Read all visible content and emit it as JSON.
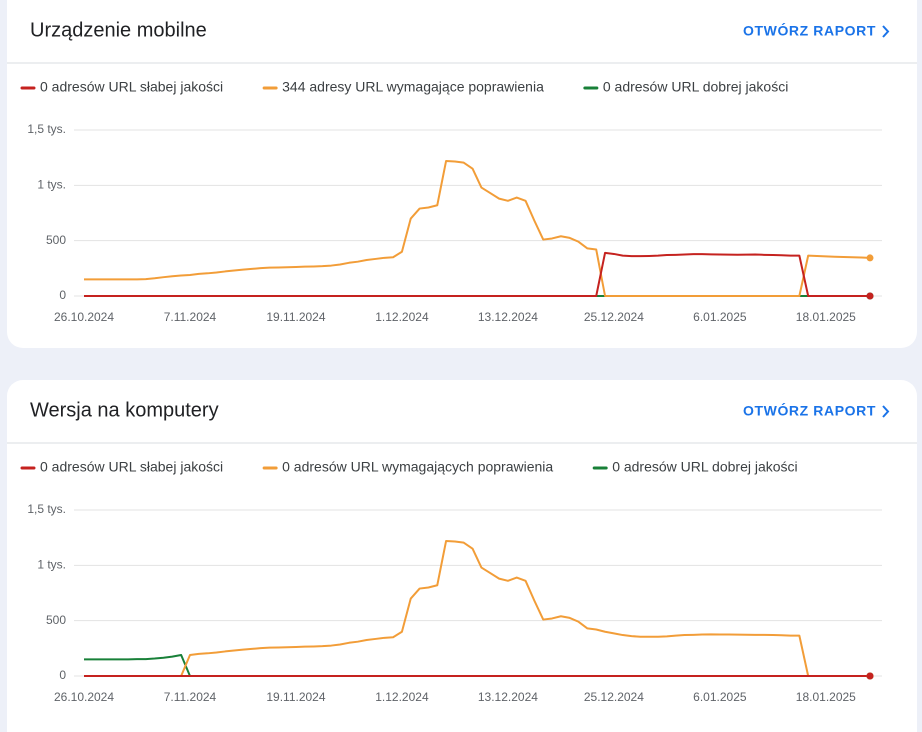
{
  "chart_data": [
    {
      "type": "line",
      "title": "Urządzenie mobilne",
      "action": "OTWÓRZ RAPORT",
      "x": [
        "26.10.2024",
        "27.10.2024",
        "28.10.2024",
        "29.10.2024",
        "30.10.2024",
        "31.10.2024",
        "1.11.2024",
        "2.11.2024",
        "3.11.2024",
        "4.11.2024",
        "5.11.2024",
        "6.11.2024",
        "7.11.2024",
        "8.11.2024",
        "9.11.2024",
        "10.11.2024",
        "11.11.2024",
        "12.11.2024",
        "13.11.2024",
        "14.11.2024",
        "15.11.2024",
        "16.11.2024",
        "17.11.2024",
        "18.11.2024",
        "19.11.2024",
        "20.11.2024",
        "21.11.2024",
        "22.11.2024",
        "23.11.2024",
        "24.11.2024",
        "25.11.2024",
        "26.11.2024",
        "27.11.2024",
        "28.11.2024",
        "29.11.2024",
        "30.11.2024",
        "1.12.2024",
        "2.12.2024",
        "3.12.2024",
        "4.12.2024",
        "5.12.2024",
        "6.12.2024",
        "7.12.2024",
        "8.12.2024",
        "9.12.2024",
        "10.12.2024",
        "11.12.2024",
        "12.12.2024",
        "13.12.2024",
        "14.12.2024",
        "15.12.2024",
        "16.12.2024",
        "17.12.2024",
        "18.12.2024",
        "19.12.2024",
        "20.12.2024",
        "21.12.2024",
        "22.12.2024",
        "23.12.2024",
        "24.12.2024",
        "25.12.2024",
        "26.12.2024",
        "27.12.2024",
        "28.12.2024",
        "29.12.2024",
        "30.12.2024",
        "31.12.2024",
        "1.01.2025",
        "2.01.2025",
        "3.01.2025",
        "4.01.2025",
        "5.01.2025",
        "6.01.2025",
        "7.01.2025",
        "8.01.2025",
        "9.01.2025",
        "10.01.2025",
        "11.01.2025",
        "12.01.2025",
        "13.01.2025",
        "14.01.2025",
        "15.01.2025",
        "16.01.2025",
        "17.01.2025",
        "18.01.2025",
        "19.01.2025",
        "20.01.2025",
        "21.01.2025",
        "22.01.2025",
        "23.01.2025"
      ],
      "ylim": [
        0,
        1500
      ],
      "yticks": [
        0,
        500,
        {
          "value": 1000,
          "label": "1 tys."
        },
        {
          "value": 1500,
          "label": "1,5 tys."
        }
      ],
      "grid": true,
      "series": [
        {
          "name": "0 adresów URL słabej jakości",
          "color": "#c5221f",
          "values": [
            0,
            0,
            0,
            0,
            0,
            0,
            0,
            0,
            0,
            0,
            0,
            0,
            0,
            0,
            0,
            0,
            0,
            0,
            0,
            0,
            0,
            0,
            0,
            0,
            0,
            0,
            0,
            0,
            0,
            0,
            0,
            0,
            0,
            0,
            0,
            0,
            0,
            0,
            0,
            0,
            0,
            0,
            0,
            0,
            0,
            0,
            0,
            0,
            0,
            0,
            0,
            0,
            0,
            0,
            0,
            0,
            0,
            0,
            0,
            390,
            380,
            365,
            360,
            360,
            362,
            365,
            370,
            372,
            375,
            378,
            378,
            376,
            375,
            374,
            373,
            374,
            375,
            372,
            370,
            368,
            365,
            365,
            0,
            0,
            0,
            0,
            0,
            0,
            0,
            0
          ]
        },
        {
          "name": "344 adresy URL wymagające poprawienia",
          "color": "#f29d38",
          "values": [
            150,
            150,
            150,
            150,
            150,
            150,
            150,
            152,
            160,
            170,
            178,
            185,
            190,
            200,
            205,
            212,
            222,
            230,
            238,
            245,
            252,
            256,
            258,
            260,
            262,
            265,
            267,
            270,
            275,
            285,
            300,
            310,
            325,
            335,
            345,
            350,
            400,
            700,
            790,
            800,
            820,
            1220,
            1215,
            1205,
            1150,
            980,
            930,
            880,
            860,
            890,
            860,
            680,
            510,
            520,
            540,
            525,
            490,
            430,
            420,
            0,
            0,
            0,
            0,
            0,
            0,
            0,
            0,
            0,
            0,
            0,
            0,
            0,
            0,
            0,
            0,
            0,
            0,
            0,
            0,
            0,
            0,
            0,
            365,
            362,
            358,
            355,
            352,
            350,
            348,
            344
          ]
        },
        {
          "name": "0 adresów URL dobrej jakości",
          "color": "#188038",
          "values": [
            0,
            0,
            0,
            0,
            0,
            0,
            0,
            0,
            0,
            0,
            0,
            0,
            0,
            0,
            0,
            0,
            0,
            0,
            0,
            0,
            0,
            0,
            0,
            0,
            0,
            0,
            0,
            0,
            0,
            0,
            0,
            0,
            0,
            0,
            0,
            0,
            0,
            0,
            0,
            0,
            0,
            0,
            0,
            0,
            0,
            0,
            0,
            0,
            0,
            0,
            0,
            0,
            0,
            0,
            0,
            0,
            0,
            0,
            0,
            0,
            0,
            0,
            0,
            0,
            0,
            0,
            0,
            0,
            0,
            0,
            0,
            0,
            0,
            0,
            0,
            0,
            0,
            0,
            0,
            0,
            0,
            0,
            0,
            0,
            0,
            0,
            0,
            0,
            0,
            0
          ]
        }
      ]
    },
    {
      "type": "line",
      "title": "Wersja na komputery",
      "action": "OTWÓRZ RAPORT",
      "x": [
        "26.10.2024",
        "27.10.2024",
        "28.10.2024",
        "29.10.2024",
        "30.10.2024",
        "31.10.2024",
        "1.11.2024",
        "2.11.2024",
        "3.11.2024",
        "4.11.2024",
        "5.11.2024",
        "6.11.2024",
        "7.11.2024",
        "8.11.2024",
        "9.11.2024",
        "10.11.2024",
        "11.11.2024",
        "12.11.2024",
        "13.11.2024",
        "14.11.2024",
        "15.11.2024",
        "16.11.2024",
        "17.11.2024",
        "18.11.2024",
        "19.11.2024",
        "20.11.2024",
        "21.11.2024",
        "22.11.2024",
        "23.11.2024",
        "24.11.2024",
        "25.11.2024",
        "26.11.2024",
        "27.11.2024",
        "28.11.2024",
        "29.11.2024",
        "30.11.2024",
        "1.12.2024",
        "2.12.2024",
        "3.12.2024",
        "4.12.2024",
        "5.12.2024",
        "6.12.2024",
        "7.12.2024",
        "8.12.2024",
        "9.12.2024",
        "10.12.2024",
        "11.12.2024",
        "12.12.2024",
        "13.12.2024",
        "14.12.2024",
        "15.12.2024",
        "16.12.2024",
        "17.12.2024",
        "18.12.2024",
        "19.12.2024",
        "20.12.2024",
        "21.12.2024",
        "22.12.2024",
        "23.12.2024",
        "24.12.2024",
        "25.12.2024",
        "26.12.2024",
        "27.12.2024",
        "28.12.2024",
        "29.12.2024",
        "30.12.2024",
        "31.12.2024",
        "1.01.2025",
        "2.01.2025",
        "3.01.2025",
        "4.01.2025",
        "5.01.2025",
        "6.01.2025",
        "7.01.2025",
        "8.01.2025",
        "9.01.2025",
        "10.01.2025",
        "11.01.2025",
        "12.01.2025",
        "13.01.2025",
        "14.01.2025",
        "15.01.2025",
        "16.01.2025",
        "17.01.2025",
        "18.01.2025",
        "19.01.2025",
        "20.01.2025",
        "21.01.2025",
        "22.01.2025",
        "23.01.2025"
      ],
      "ylim": [
        0,
        1500
      ],
      "yticks": [
        0,
        500,
        {
          "value": 1000,
          "label": "1 tys."
        },
        {
          "value": 1500,
          "label": "1,5 tys."
        }
      ],
      "grid": true,
      "series": [
        {
          "name": "0 adresów URL słabej jakości",
          "color": "#c5221f",
          "values": [
            0,
            0,
            0,
            0,
            0,
            0,
            0,
            0,
            0,
            0,
            0,
            0,
            0,
            0,
            0,
            0,
            0,
            0,
            0,
            0,
            0,
            0,
            0,
            0,
            0,
            0,
            0,
            0,
            0,
            0,
            0,
            0,
            0,
            0,
            0,
            0,
            0,
            0,
            0,
            0,
            0,
            0,
            0,
            0,
            0,
            0,
            0,
            0,
            0,
            0,
            0,
            0,
            0,
            0,
            0,
            0,
            0,
            0,
            0,
            0,
            0,
            0,
            0,
            0,
            0,
            0,
            0,
            0,
            0,
            0,
            0,
            0,
            0,
            0,
            0,
            0,
            0,
            0,
            0,
            0,
            0,
            0,
            0,
            0,
            0,
            0,
            0,
            0,
            0,
            0
          ]
        },
        {
          "name": "0 adresów URL wymagających poprawienia",
          "color": "#f29d38",
          "values": [
            0,
            0,
            0,
            0,
            0,
            0,
            0,
            0,
            0,
            0,
            0,
            0,
            190,
            200,
            205,
            212,
            222,
            230,
            238,
            245,
            252,
            256,
            258,
            260,
            262,
            265,
            267,
            270,
            275,
            285,
            300,
            310,
            325,
            335,
            345,
            350,
            400,
            700,
            790,
            800,
            820,
            1220,
            1215,
            1205,
            1150,
            980,
            930,
            880,
            860,
            890,
            860,
            680,
            510,
            520,
            540,
            525,
            490,
            430,
            420,
            400,
            385,
            370,
            360,
            355,
            355,
            355,
            358,
            365,
            370,
            372,
            375,
            376,
            375,
            375,
            374,
            373,
            372,
            372,
            370,
            368,
            365,
            365,
            0,
            0,
            0,
            0,
            0,
            0,
            0,
            0
          ]
        },
        {
          "name": "0 adresów URL dobrej jakości",
          "color": "#188038",
          "values": [
            150,
            150,
            150,
            150,
            150,
            150,
            152,
            153,
            158,
            165,
            175,
            190,
            0,
            0,
            0,
            0,
            0,
            0,
            0,
            0,
            0,
            0,
            0,
            0,
            0,
            0,
            0,
            0,
            0,
            0,
            0,
            0,
            0,
            0,
            0,
            0,
            0,
            0,
            0,
            0,
            0,
            0,
            0,
            0,
            0,
            0,
            0,
            0,
            0,
            0,
            0,
            0,
            0,
            0,
            0,
            0,
            0,
            0,
            0,
            0,
            0,
            0,
            0,
            0,
            0,
            0,
            0,
            0,
            0,
            0,
            0,
            0,
            0,
            0,
            0,
            0,
            0,
            0,
            0,
            0,
            0,
            0,
            0,
            0,
            0,
            0,
            0,
            0,
            0,
            0
          ]
        }
      ]
    }
  ]
}
